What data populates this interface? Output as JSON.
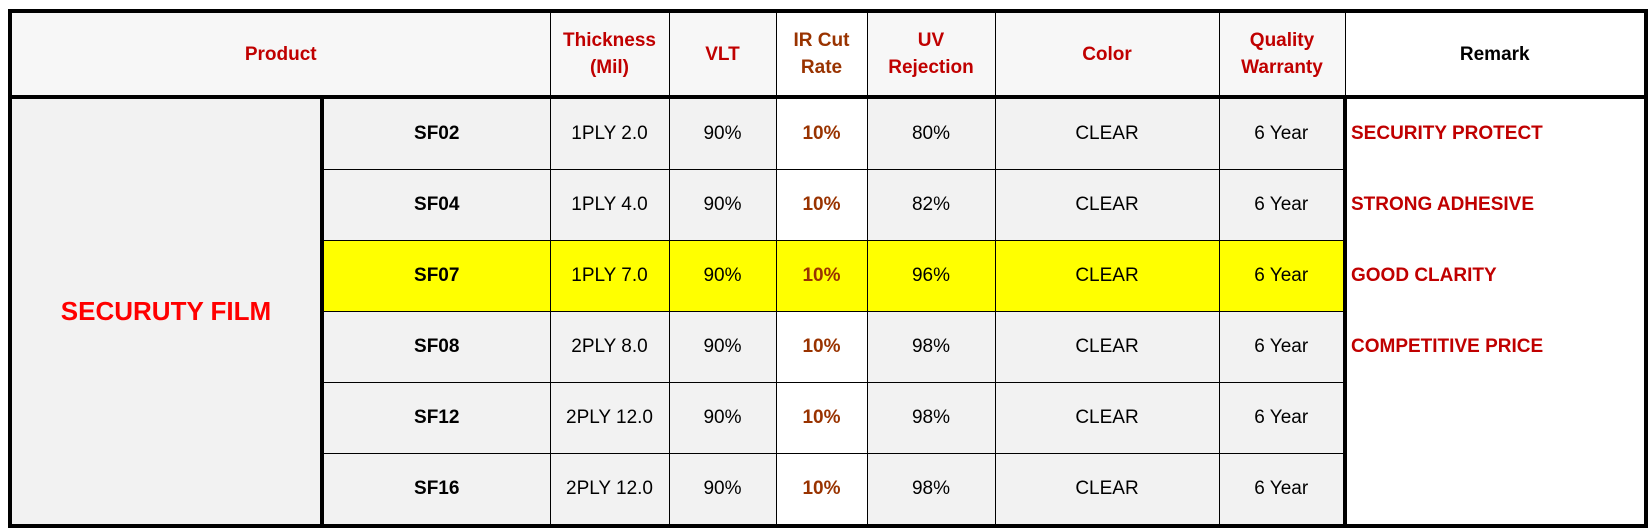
{
  "table": {
    "header": [
      "Product",
      "Thickness\n(Mil)",
      "VLT",
      "IR Cut\nRate",
      "UV\nRejection",
      "Color",
      "Quality\nWarranty",
      "Remark"
    ],
    "product": "SECURUTY FILM",
    "rows": [
      [
        "SF02",
        "1PLY 2.0",
        "90%",
        "10%",
        "80%",
        "CLEAR",
        "6 Year"
      ],
      [
        "SF04",
        "1PLY 4.0",
        "90%",
        "10%",
        "82%",
        "CLEAR",
        "6 Year"
      ],
      [
        "SF07",
        "1PLY 7.0",
        "90%",
        "10%",
        "96%",
        "CLEAR",
        "6 Year"
      ],
      [
        "SF08",
        "2PLY 8.0",
        "90%",
        "10%",
        "98%",
        "CLEAR",
        "6 Year"
      ],
      [
        "SF12",
        "2PLY 12.0",
        "90%",
        "10%",
        "98%",
        "CLEAR",
        "6 Year"
      ],
      [
        "SF16",
        "2PLY 12.0",
        "90%",
        "10%",
        "98%",
        "CLEAR",
        "6 Year"
      ]
    ],
    "remarks": [
      "SECURITY PROTECT",
      "STRONG ADHESIVE",
      "GOOD CLARITY",
      "COMPETITIVE PRICE"
    ],
    "highlight_row": 2,
    "highlight_color": "#ffff00"
  }
}
